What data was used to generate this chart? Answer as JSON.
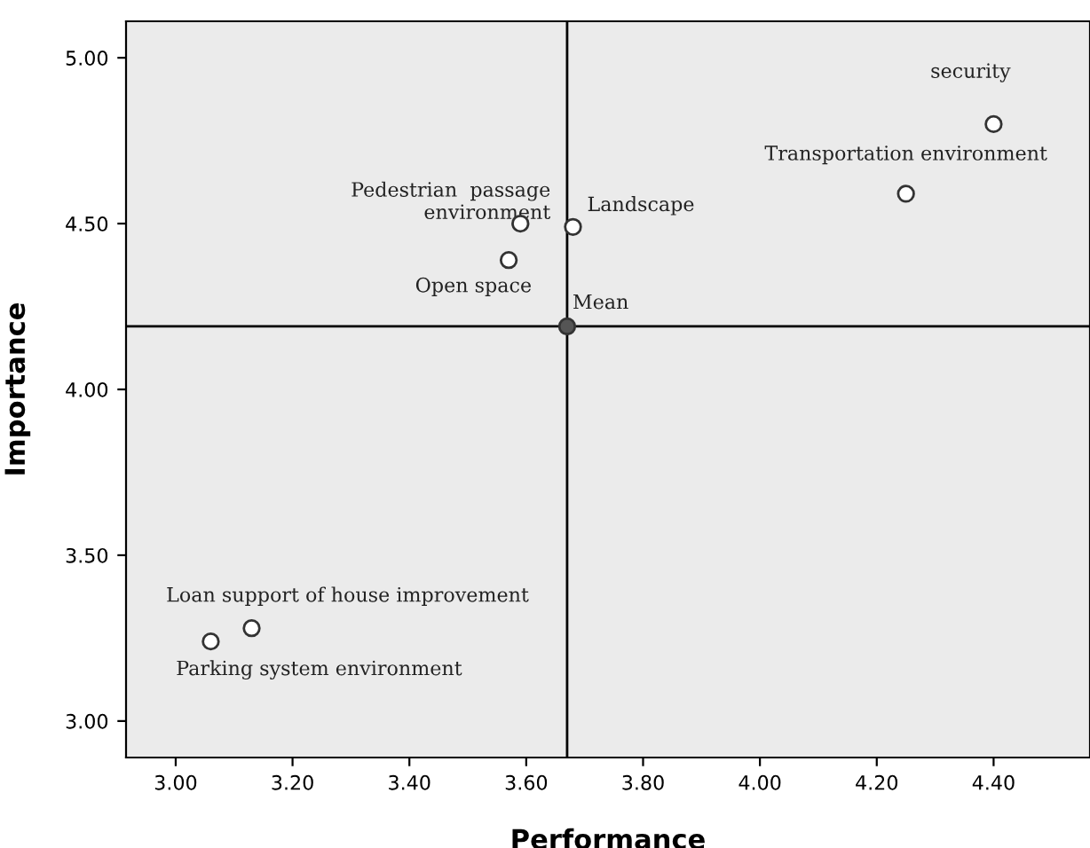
{
  "chart_data": {
    "type": "scatter",
    "xlabel": "Performance",
    "ylabel": "Importance",
    "xlim": [
      2.915,
      4.565
    ],
    "ylim": [
      2.89,
      5.11
    ],
    "xticks": [
      {
        "value": 3.0,
        "label": "3.00"
      },
      {
        "value": 3.2,
        "label": "3.20"
      },
      {
        "value": 3.4,
        "label": "3.40"
      },
      {
        "value": 3.6,
        "label": "3.60"
      },
      {
        "value": 3.8,
        "label": "3.80"
      },
      {
        "value": 4.0,
        "label": "4.00"
      },
      {
        "value": 4.2,
        "label": "4.20"
      },
      {
        "value": 4.4,
        "label": "4.40"
      }
    ],
    "yticks": [
      {
        "value": 3.0,
        "label": "3.00"
      },
      {
        "value": 3.5,
        "label": "3.50"
      },
      {
        "value": 4.0,
        "label": "4.00"
      },
      {
        "value": 4.5,
        "label": "4.50"
      },
      {
        "value": 5.0,
        "label": "5.00"
      }
    ],
    "grid": false,
    "marker": "circle",
    "series": [
      {
        "color": "#ffffff",
        "x": [
          4.4,
          4.25,
          3.59,
          3.68,
          3.57,
          3.13,
          3.06
        ],
        "values": [
          4.8,
          4.59,
          4.5,
          4.49,
          4.39,
          3.28,
          3.24
        ]
      },
      {
        "color": "#555555",
        "x": [
          3.67
        ],
        "values": [
          4.19
        ]
      }
    ],
    "ref_lines": [
      {
        "axis": "x",
        "value": 3.67,
        "color": "#000000"
      },
      {
        "axis": "y",
        "value": 4.19,
        "color": "#000000"
      }
    ],
    "annotations": [
      {
        "text": "security",
        "x": 4.4,
        "y": 4.8
      },
      {
        "text": "Transportation environment",
        "x": 4.25,
        "y": 4.59
      },
      {
        "text": "Pedestrian  passage\nenvironment",
        "x": 3.59,
        "y": 4.5
      },
      {
        "text": "Landscape",
        "x": 3.68,
        "y": 4.49
      },
      {
        "text": "Open space",
        "x": 3.57,
        "y": 4.39
      },
      {
        "text": "Mean",
        "x": 3.67,
        "y": 4.19
      },
      {
        "text": "Loan support of house improvement",
        "x": 3.13,
        "y": 3.28
      },
      {
        "text": "Parking system environment",
        "x": 3.06,
        "y": 3.24
      }
    ]
  }
}
